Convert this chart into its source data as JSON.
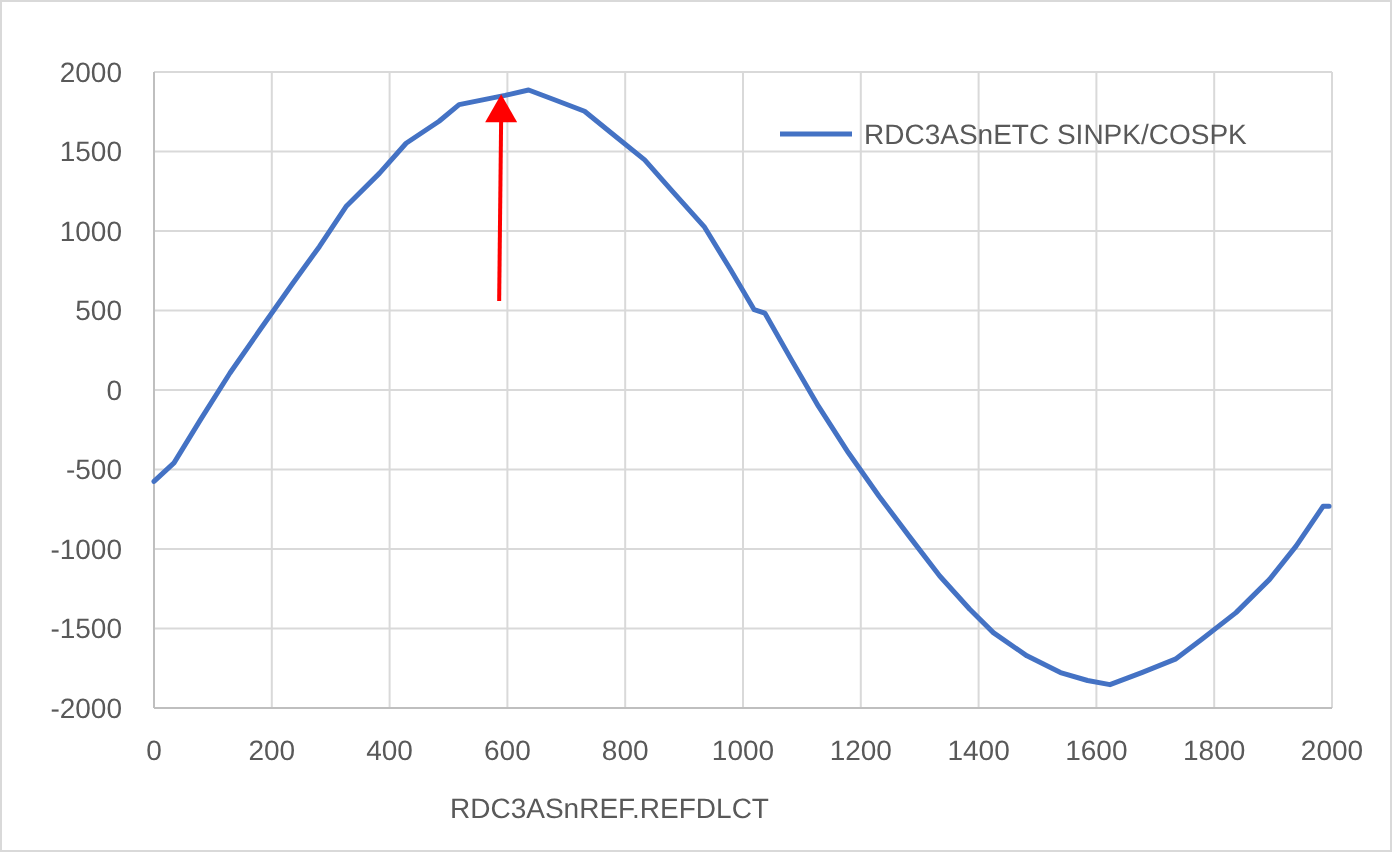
{
  "chart_data": {
    "type": "line",
    "xlabel": "RDC3ASnREF.REFDLCT",
    "x": [
      0,
      34,
      79,
      129,
      180,
      236,
      281,
      326,
      383,
      428,
      484,
      518,
      596,
      636,
      681,
      731,
      777,
      833,
      878,
      934,
      979,
      1019,
      1037,
      1082,
      1128,
      1179,
      1231,
      1282,
      1334,
      1385,
      1425,
      1482,
      1539,
      1585,
      1623,
      1677,
      1734,
      1779,
      1837,
      1894,
      1939,
      1985,
      1995
    ],
    "series": [
      {
        "name": "RDC3ASnETC SINPK/COSPK",
        "color": "#4472c4",
        "values": [
          -575,
          -458,
          -186,
          107,
          379,
          673,
          903,
          1154,
          1364,
          1552,
          1690,
          1795,
          1853,
          1887,
          1824,
          1753,
          1615,
          1447,
          1259,
          1028,
          756,
          505,
          484,
          191,
          -102,
          -395,
          -668,
          -919,
          -1170,
          -1379,
          -1526,
          -1672,
          -1777,
          -1827,
          -1853,
          -1777,
          -1693,
          -1568,
          -1400,
          -1191,
          -982,
          -731,
          -731
        ]
      }
    ],
    "xlim": [
      0,
      2000
    ],
    "xticks": [
      0,
      200,
      400,
      600,
      800,
      1000,
      1200,
      1400,
      1600,
      1800,
      2000
    ],
    "ylim": [
      -2000,
      2000
    ],
    "yticks": [
      -2000,
      -1500,
      -1000,
      -500,
      0,
      500,
      1000,
      1500,
      2000
    ],
    "grid": true,
    "legend": "top right",
    "marker": "none",
    "line_style": "solid"
  }
}
